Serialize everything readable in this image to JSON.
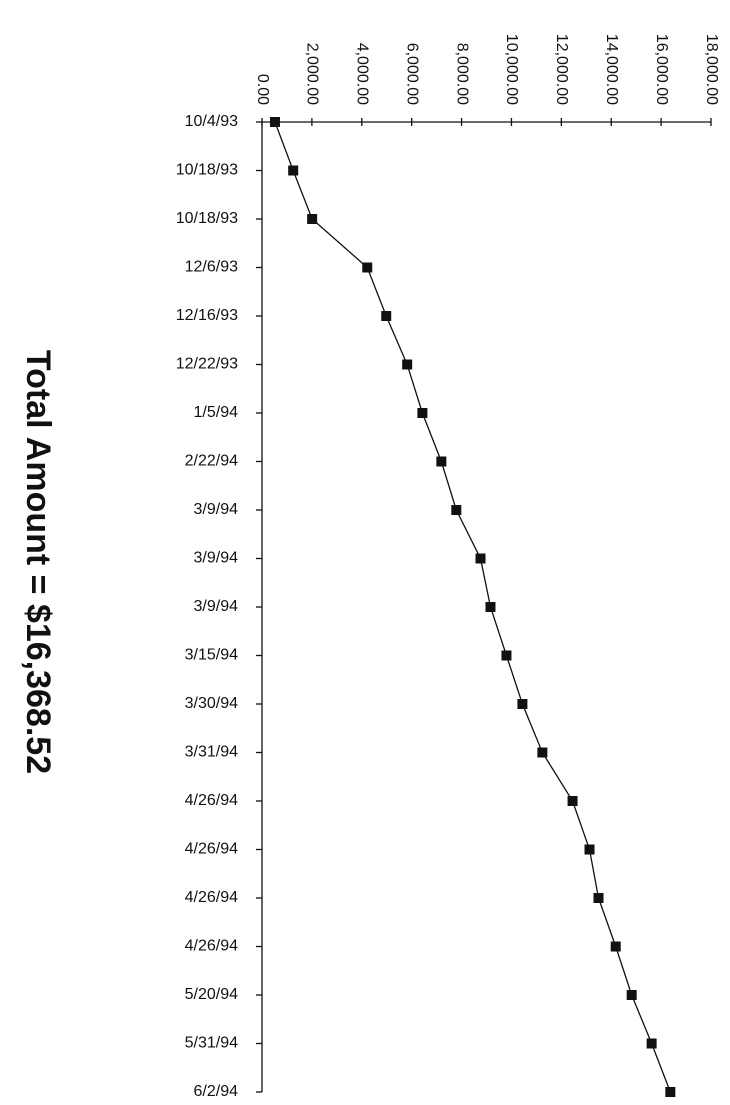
{
  "chart_data": {
    "type": "line",
    "title": "Total Amount = $16,368.52",
    "categories": [
      "10/4/93",
      "10/18/93",
      "10/18/93",
      "12/6/93",
      "12/16/93",
      "12/22/93",
      "1/5/94",
      "2/22/94",
      "3/9/94",
      "3/9/94",
      "3/9/94",
      "3/15/94",
      "3/30/94",
      "3/31/94",
      "4/26/94",
      "4/26/94",
      "4/26/94",
      "4/26/94",
      "5/20/94",
      "5/31/94",
      "6/2/94"
    ],
    "series": [
      {
        "color": "#111111",
        "marker": "square",
        "values": [
          520,
          1250,
          2010,
          4220,
          4980,
          5820,
          6430,
          7190,
          7790,
          8760,
          9160,
          9800,
          10440,
          11240,
          12450,
          13130,
          13490,
          14180,
          14820,
          15620,
          16370
        ]
      }
    ],
    "xlim": [
      0,
      18000
    ],
    "xticks": [
      {
        "value": 0,
        "label": "0.00"
      },
      {
        "value": 2000,
        "label": "2,000.00"
      },
      {
        "value": 4000,
        "label": "4,000.00"
      },
      {
        "value": 6000,
        "label": "6,000.00"
      },
      {
        "value": 8000,
        "label": "8,000.00"
      },
      {
        "value": 10000,
        "label": "10,000.00"
      },
      {
        "value": 12000,
        "label": "12,000.00"
      },
      {
        "value": 14000,
        "label": "14,000.00"
      },
      {
        "value": 16000,
        "label": "16,000.00"
      },
      {
        "value": 18000,
        "label": "18,000.00"
      }
    ]
  }
}
